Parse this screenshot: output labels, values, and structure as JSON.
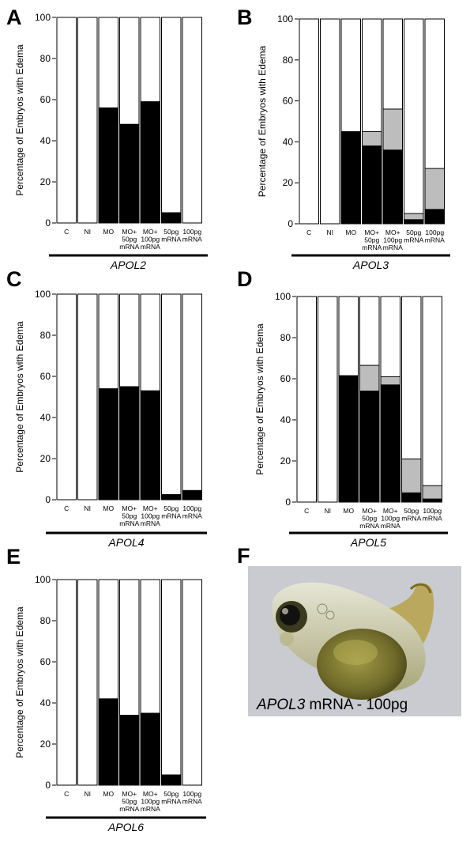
{
  "chart_data": [
    {
      "panel": "A",
      "type": "bar",
      "stacked": true,
      "gene": "APOL2",
      "ylabel": "Percentage of Embryos with Edema",
      "ylim": [
        0,
        100
      ],
      "yticks": [
        0,
        20,
        40,
        60,
        80,
        100
      ],
      "categories": [
        [
          "C"
        ],
        [
          "NI"
        ],
        [
          "MO"
        ],
        [
          "MO+",
          "50pg",
          "mRNA"
        ],
        [
          "MO+",
          "100pg",
          "mRNA"
        ],
        [
          "50pg",
          "mRNA"
        ],
        [
          "100pg",
          "mRNA"
        ]
      ],
      "series": [
        {
          "values": [
            0,
            0,
            56,
            48,
            59,
            5,
            0
          ],
          "color": "#000000"
        },
        {
          "values": [
            0,
            0,
            0,
            0,
            0,
            0,
            0
          ],
          "color": "#bdbdbd"
        }
      ]
    },
    {
      "panel": "B",
      "type": "bar",
      "stacked": true,
      "gene": "APOL3",
      "ylabel": "Percentage of Embryos with Edema",
      "ylim": [
        0,
        100
      ],
      "yticks": [
        0,
        20,
        40,
        60,
        80,
        100
      ],
      "categories": [
        [
          "C"
        ],
        [
          "NI"
        ],
        [
          "MO"
        ],
        [
          "MO+",
          "50pg",
          "mRNA"
        ],
        [
          "MO+",
          "100pg",
          "mRNA"
        ],
        [
          "50pg",
          "mRNA"
        ],
        [
          "100pg",
          "mRNA"
        ]
      ],
      "series": [
        {
          "values": [
            0,
            0,
            45,
            38,
            36,
            2,
            7
          ],
          "color": "#000000"
        },
        {
          "values": [
            0,
            0,
            0,
            7,
            20,
            3,
            20
          ],
          "color": "#bdbdbd"
        }
      ]
    },
    {
      "panel": "C",
      "type": "bar",
      "stacked": true,
      "gene": "APOL4",
      "ylabel": "Percentage of Embryos with Edema",
      "ylim": [
        0,
        100
      ],
      "yticks": [
        0,
        20,
        40,
        60,
        80,
        100
      ],
      "categories": [
        [
          "C"
        ],
        [
          "NI"
        ],
        [
          "MO"
        ],
        [
          "MO+",
          "50pg",
          "mRNA"
        ],
        [
          "MO+",
          "100pg",
          "mRNA"
        ],
        [
          "50pg",
          "mRNA"
        ],
        [
          "100pg",
          "mRNA"
        ]
      ],
      "series": [
        {
          "values": [
            0,
            0,
            54,
            55,
            53,
            2.5,
            4.5
          ],
          "color": "#000000"
        },
        {
          "values": [
            0,
            0,
            0,
            0,
            0,
            0,
            0
          ],
          "color": "#bdbdbd"
        }
      ]
    },
    {
      "panel": "D",
      "type": "bar",
      "stacked": true,
      "gene": "APOL5",
      "ylabel": "Percentage of Embryos with Edema",
      "ylim": [
        0,
        100
      ],
      "yticks": [
        0,
        20,
        40,
        60,
        80,
        100
      ],
      "categories": [
        [
          "C"
        ],
        [
          "NI"
        ],
        [
          "MO"
        ],
        [
          "MO+",
          "50pg",
          "mRNA"
        ],
        [
          "MO+",
          "100pg",
          "mRNA"
        ],
        [
          "50pg",
          "mRNA"
        ],
        [
          "100pg",
          "mRNA"
        ]
      ],
      "series": [
        {
          "values": [
            0,
            0,
            61.5,
            54,
            57,
            4.5,
            1.5
          ],
          "color": "#000000"
        },
        {
          "values": [
            0,
            0,
            0,
            12.5,
            4,
            16.5,
            6.5
          ],
          "color": "#bdbdbd"
        }
      ]
    },
    {
      "panel": "E",
      "type": "bar",
      "stacked": true,
      "gene": "APOL6",
      "ylabel": "Percentage of Embryos with Edema",
      "ylim": [
        0,
        100
      ],
      "yticks": [
        0,
        20,
        40,
        60,
        80,
        100
      ],
      "categories": [
        [
          "C"
        ],
        [
          "NI"
        ],
        [
          "MO"
        ],
        [
          "MO+",
          "50pg",
          "mRNA"
        ],
        [
          "MO+",
          "100pg",
          "mRNA"
        ],
        [
          "50pg",
          "mRNA"
        ],
        [
          "100pg",
          "mRNA"
        ]
      ],
      "series": [
        {
          "values": [
            0,
            0,
            42,
            34,
            35,
            5,
            0
          ],
          "color": "#000000"
        },
        {
          "values": [
            0,
            0,
            0,
            0,
            0,
            0,
            0
          ],
          "color": "#bdbdbd"
        }
      ]
    }
  ],
  "photo_panel": {
    "letter": "F",
    "caption_gene": "APOL3",
    "caption_rest": " mRNA - 100pg"
  },
  "colors": {
    "bar_outline": "#000000",
    "bar_background": "#ffffff",
    "photo_background": "#c9cbd0",
    "photo_embryo": "#8f8a3c"
  }
}
